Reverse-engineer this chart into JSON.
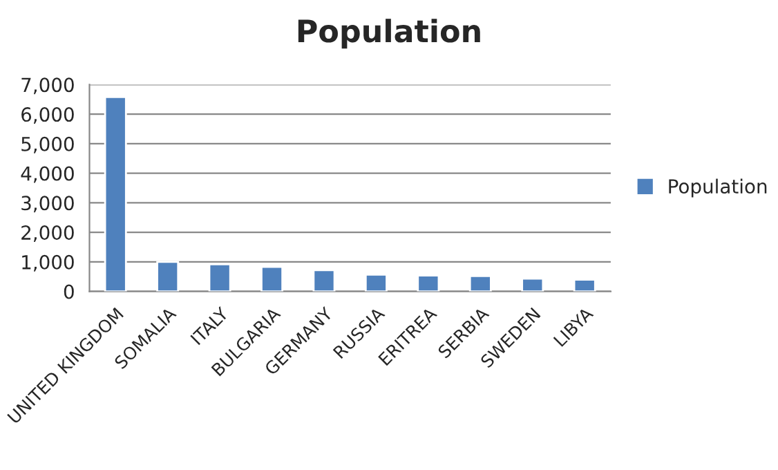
{
  "chart_data": {
    "type": "bar",
    "title": "Population",
    "categories": [
      "UNITED KINGDOM",
      "SOMALIA",
      "ITALY",
      "BULGARIA",
      "GERMANY",
      "RUSSIA",
      "ERITREA",
      "SERBIA",
      "SWEDEN",
      "LIBYA"
    ],
    "series": [
      {
        "name": "Population",
        "color": "#4f81bd",
        "values": [
          6580,
          1000,
          920,
          830,
          720,
          570,
          540,
          520,
          430,
          400
        ]
      }
    ],
    "ylim": [
      0,
      7000
    ],
    "yticks": [
      {
        "value": 0,
        "label": "0"
      },
      {
        "value": 1000,
        "label": "1,000"
      },
      {
        "value": 2000,
        "label": "2,000"
      },
      {
        "value": 3000,
        "label": "3,000"
      },
      {
        "value": 4000,
        "label": "4,000"
      },
      {
        "value": 5000,
        "label": "5,000"
      },
      {
        "value": 6000,
        "label": "6,000"
      },
      {
        "value": 7000,
        "label": "7,000"
      }
    ],
    "grid": "y",
    "legend": "right"
  }
}
